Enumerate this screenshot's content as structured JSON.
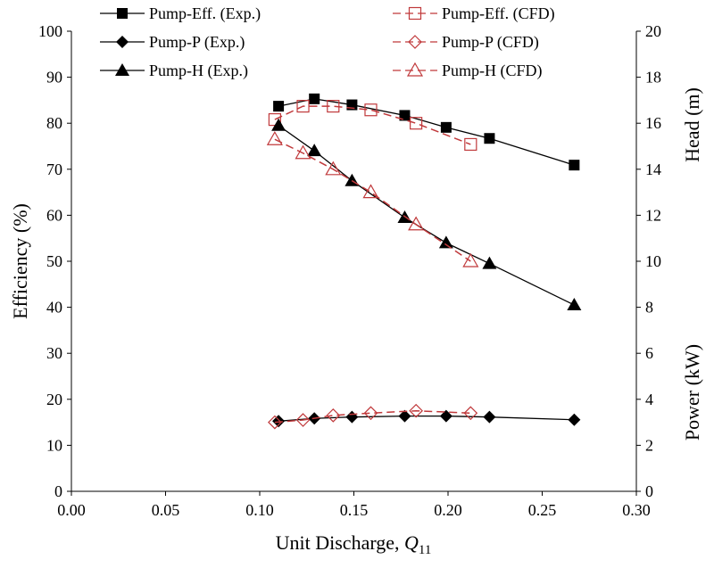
{
  "chart_data": {
    "type": "line",
    "xlabel": "Unit Discharge, ",
    "xlabel_symbol": "Q",
    "xlabel_subscript": "11",
    "xlim": [
      0,
      0.3
    ],
    "xticks": [
      "0.00",
      "0.05",
      "0.10",
      "0.15",
      "0.20",
      "0.25",
      "0.30"
    ],
    "y_left": {
      "label": "Efficiency (%)",
      "lim": [
        0,
        100
      ],
      "ticks": [
        "0",
        "10",
        "20",
        "30",
        "40",
        "50",
        "60",
        "70",
        "80",
        "90",
        "100"
      ]
    },
    "y_right": {
      "head_label": "Head (m)",
      "power_label": "Power (kW)",
      "lim": [
        0,
        20
      ],
      "ticks": [
        "0",
        "2",
        "4",
        "6",
        "8",
        "10",
        "12",
        "14",
        "16",
        "18",
        "20"
      ]
    },
    "grid": false,
    "legend_position": "top",
    "series": [
      {
        "name": "Pump-Eff. (Exp.)",
        "axis": "efficiency",
        "marker": "square-filled",
        "color": "#000000",
        "dash": false,
        "x": [
          0.11,
          0.129,
          0.149,
          0.177,
          0.199,
          0.222,
          0.267
        ],
        "y": [
          83.7,
          85.3,
          84.0,
          81.7,
          79.1,
          76.7,
          70.9
        ]
      },
      {
        "name": "Pump-Eff. (CFD)",
        "axis": "efficiency",
        "marker": "square-open",
        "color": "#c0393b",
        "dash": true,
        "x": [
          0.108,
          0.123,
          0.139,
          0.159,
          0.183,
          0.212
        ],
        "y": [
          80.8,
          83.7,
          83.7,
          82.9,
          80.0,
          75.4
        ]
      },
      {
        "name": "Pump-P (Exp.)",
        "axis": "power",
        "marker": "diamond-filled",
        "color": "#000000",
        "dash": false,
        "x": [
          0.11,
          0.129,
          0.149,
          0.177,
          0.199,
          0.222,
          0.267
        ],
        "y": [
          3.05,
          3.17,
          3.23,
          3.27,
          3.27,
          3.23,
          3.11
        ]
      },
      {
        "name": "Pump-P (CFD)",
        "axis": "power",
        "marker": "diamond-open",
        "color": "#c0393b",
        "dash": true,
        "x": [
          0.108,
          0.123,
          0.139,
          0.159,
          0.183,
          0.212
        ],
        "y": [
          3.0,
          3.1,
          3.3,
          3.4,
          3.5,
          3.4
        ]
      },
      {
        "name": "Pump-H (Exp.)",
        "axis": "head",
        "marker": "triangle-filled",
        "color": "#000000",
        "dash": false,
        "x": [
          0.11,
          0.129,
          0.149,
          0.177,
          0.199,
          0.222,
          0.267
        ],
        "y": [
          15.9,
          14.8,
          13.5,
          11.9,
          10.8,
          9.9,
          8.1
        ]
      },
      {
        "name": "Pump-H (CFD)",
        "axis": "head",
        "marker": "triangle-open",
        "color": "#c0393b",
        "dash": true,
        "x": [
          0.108,
          0.123,
          0.139,
          0.159,
          0.183,
          0.212
        ],
        "y": [
          15.3,
          14.7,
          14.0,
          13.0,
          11.6,
          10.0
        ]
      }
    ]
  }
}
